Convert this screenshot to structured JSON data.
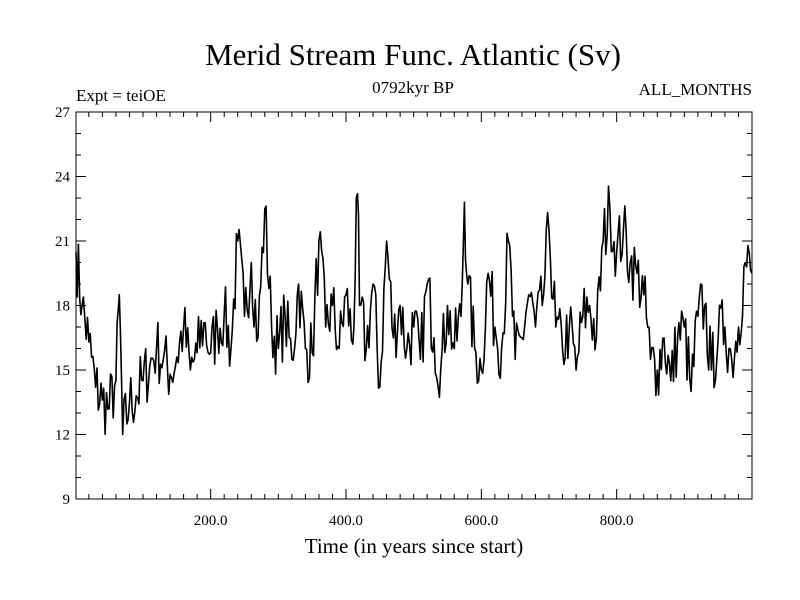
{
  "chart_data": {
    "type": "line",
    "title": "Merid Stream Func. Atlantic (Sv)",
    "subtitle_left": "Expt = teiOE",
    "subtitle_center": "0792kyr BP",
    "subtitle_right": "ALL_MONTHS",
    "xlabel": "Time (in years since start)",
    "ylabel": "",
    "xlim": [
      1,
      1000
    ],
    "ylim": [
      9,
      27
    ],
    "xticks": [
      200,
      400,
      600,
      800
    ],
    "xtick_labels": [
      "200.0",
      "400.0",
      "600.0",
      "800.0"
    ],
    "yticks": [
      9,
      12,
      15,
      18,
      21,
      24,
      27
    ],
    "ytick_labels": [
      "9",
      "12",
      "15",
      "18",
      "21",
      "24",
      "27"
    ],
    "grid": false,
    "series": [
      {
        "name": "Merid Stream Func. Atlantic",
        "x": [
          1,
          10,
          20,
          30,
          40,
          50,
          60,
          65,
          70,
          80,
          90,
          100,
          110,
          120,
          130,
          140,
          150,
          160,
          170,
          180,
          190,
          200,
          210,
          220,
          230,
          240,
          250,
          260,
          270,
          280,
          290,
          300,
          310,
          320,
          330,
          340,
          350,
          360,
          370,
          380,
          390,
          400,
          410,
          417,
          420,
          430,
          440,
          450,
          460,
          470,
          480,
          490,
          500,
          510,
          520,
          530,
          540,
          550,
          560,
          570,
          575,
          580,
          590,
          600,
          610,
          620,
          630,
          640,
          650,
          660,
          670,
          680,
          690,
          700,
          710,
          720,
          730,
          740,
          750,
          760,
          770,
          780,
          790,
          800,
          810,
          820,
          830,
          840,
          850,
          860,
          870,
          880,
          890,
          900,
          910,
          920,
          930,
          940,
          950,
          960,
          970,
          980,
          990,
          1000
        ],
        "values": [
          20.5,
          18.0,
          16.3,
          14.2,
          13.6,
          13.2,
          14.5,
          18.5,
          12.0,
          13.5,
          13.8,
          14.5,
          15.2,
          16.0,
          15.5,
          14.8,
          15.6,
          17.0,
          15.0,
          15.8,
          17.2,
          15.8,
          17.0,
          17.6,
          16.0,
          21.0,
          17.5,
          20.0,
          16.5,
          22.5,
          17.0,
          16.0,
          17.5,
          15.5,
          19.0,
          16.0,
          15.8,
          21.0,
          17.0,
          18.0,
          16.0,
          18.5,
          16.2,
          23.2,
          18.0,
          16.0,
          19.0,
          14.2,
          21.0,
          16.5,
          18.0,
          16.0,
          17.0,
          15.5,
          19.0,
          16.5,
          15.0,
          18.0,
          16.0,
          17.5,
          22.8,
          19.0,
          16.0,
          15.0,
          19.5,
          17.0,
          16.0,
          21.0,
          15.5,
          16.5,
          18.5,
          17.0,
          18.0,
          21.5,
          17.0,
          16.0,
          17.0,
          15.0,
          17.5,
          18.0,
          16.5,
          21.0,
          22.5,
          20.5,
          21.5,
          20.0,
          19.5,
          18.5,
          15.5,
          15.0,
          16.5,
          14.5,
          16.5,
          17.0,
          14.0,
          17.5,
          18.0,
          15.0,
          16.5,
          17.0,
          15.5,
          17.0,
          20.0,
          19.5
        ]
      }
    ]
  }
}
